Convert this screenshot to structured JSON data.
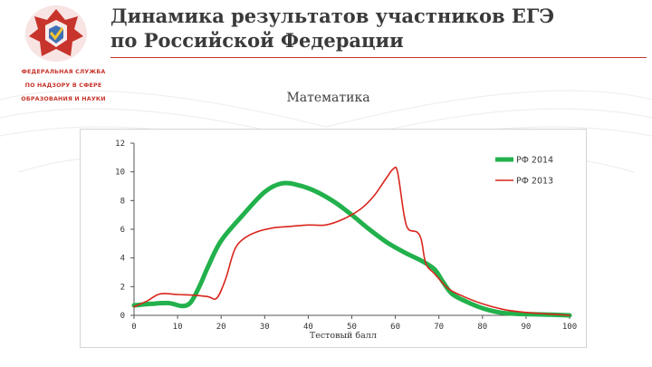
{
  "header": {
    "title_line1": "Динамика результатов участников ЕГЭ",
    "title_line2": "по Российской Федерации",
    "accent_color": "#c7342c"
  },
  "logo": {
    "icon": "agency-emblem-icon",
    "text_lines": [
      "ФЕДЕРАЛЬНАЯ СЛУЖБА",
      "ПО НАДЗОРУ В СФЕРЕ",
      "ОБРАЗОВАНИЯ И НАУКИ"
    ]
  },
  "subject": "Математика",
  "chart_data": {
    "type": "line",
    "title": "",
    "xlabel": "Тестовый балл",
    "ylabel": "",
    "xlim": [
      0,
      100
    ],
    "ylim": [
      0,
      12
    ],
    "x_ticks": [
      0,
      10,
      20,
      30,
      40,
      50,
      60,
      70,
      80,
      90,
      100
    ],
    "y_ticks": [
      0,
      2,
      4,
      6,
      8,
      10,
      12
    ],
    "grid": false,
    "legend_position": "top-right",
    "series": [
      {
        "name": "РФ 2014",
        "color": "#22b14c",
        "points": [
          [
            0,
            0.7
          ],
          [
            4,
            0.8
          ],
          [
            8,
            0.85
          ],
          [
            11,
            0.65
          ],
          [
            13,
            0.9
          ],
          [
            15,
            2.0
          ],
          [
            17,
            3.4
          ],
          [
            20,
            5.2
          ],
          [
            25,
            7.0
          ],
          [
            30,
            8.6
          ],
          [
            34,
            9.2
          ],
          [
            38,
            9.05
          ],
          [
            42,
            8.6
          ],
          [
            46,
            7.9
          ],
          [
            50,
            7.0
          ],
          [
            54,
            6.0
          ],
          [
            58,
            5.1
          ],
          [
            62,
            4.4
          ],
          [
            66,
            3.8
          ],
          [
            69,
            3.2
          ],
          [
            71,
            2.3
          ],
          [
            73,
            1.5
          ],
          [
            76,
            1.0
          ],
          [
            80,
            0.5
          ],
          [
            84,
            0.2
          ],
          [
            88,
            0.1
          ],
          [
            95,
            0.05
          ],
          [
            100,
            0.0
          ]
        ]
      },
      {
        "name": "РФ 2013",
        "color": "#d9261c",
        "points": [
          [
            0,
            0.6
          ],
          [
            3,
            1.0
          ],
          [
            6,
            1.5
          ],
          [
            10,
            1.45
          ],
          [
            14,
            1.4
          ],
          [
            17,
            1.3
          ],
          [
            19,
            1.2
          ],
          [
            21,
            2.5
          ],
          [
            23,
            4.5
          ],
          [
            25,
            5.3
          ],
          [
            28,
            5.8
          ],
          [
            32,
            6.1
          ],
          [
            36,
            6.2
          ],
          [
            40,
            6.3
          ],
          [
            44,
            6.3
          ],
          [
            48,
            6.7
          ],
          [
            52,
            7.4
          ],
          [
            55,
            8.3
          ],
          [
            58,
            9.6
          ],
          [
            59.5,
            10.2
          ],
          [
            60.5,
            10.0
          ],
          [
            62,
            7.0
          ],
          [
            63,
            6.0
          ],
          [
            65,
            5.8
          ],
          [
            66,
            5.2
          ],
          [
            67,
            3.6
          ],
          [
            69,
            2.9
          ],
          [
            72,
            1.9
          ],
          [
            75,
            1.4
          ],
          [
            80,
            0.8
          ],
          [
            85,
            0.4
          ],
          [
            90,
            0.2
          ],
          [
            95,
            0.1
          ],
          [
            100,
            0.0
          ]
        ]
      }
    ]
  }
}
